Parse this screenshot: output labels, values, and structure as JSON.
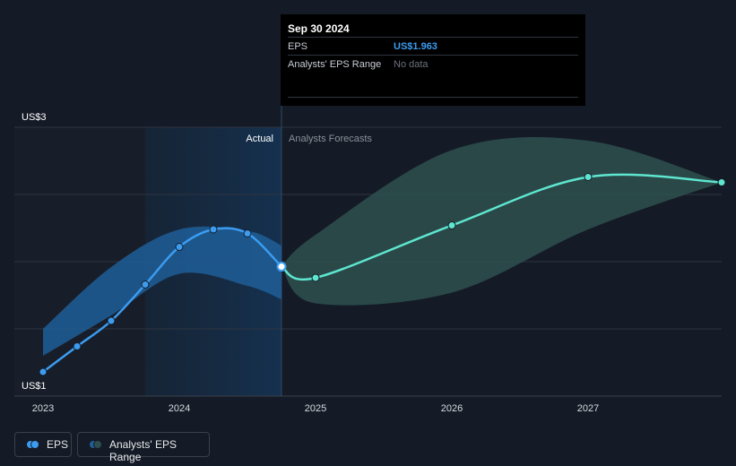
{
  "tooltip": {
    "date": "Sep 30 2024",
    "eps_label": "EPS",
    "eps_value": "US$1.963",
    "range_label": "Analysts' EPS Range",
    "range_value": "No data"
  },
  "labels": {
    "actual": "Actual",
    "forecast": "Analysts Forecasts"
  },
  "legend": {
    "eps": "EPS",
    "range": "Analysts' EPS Range"
  },
  "colors": {
    "eps_line": "#3b9cf0",
    "forecast_line": "#5ee6d0",
    "actual_band": "#1f5e98",
    "forecast_band": "#2c4e4c"
  },
  "chart_data": {
    "type": "line",
    "xlim": [
      2023.0,
      2027.98
    ],
    "ylim": [
      1,
      3
    ],
    "x_ticks": [
      "2023",
      "2024",
      "2025",
      "2026",
      "2027"
    ],
    "y_ticks": [
      "US$1",
      "US$3"
    ],
    "grid": true,
    "highlight_start": "2023.75",
    "divider_at": 2024.75,
    "series": [
      {
        "name": "EPS",
        "x": [
          2023.0,
          2023.25,
          2023.5,
          2023.75,
          2024.0,
          2024.25,
          2024.5,
          2024.75
        ],
        "values": [
          1.18,
          1.37,
          1.56,
          1.83,
          2.11,
          2.24,
          2.21,
          1.963
        ]
      },
      {
        "name": "Forecast",
        "x": [
          2024.75,
          2025.0,
          2026.0,
          2027.0,
          2027.98
        ],
        "values": [
          1.963,
          1.88,
          2.27,
          2.63,
          2.59
        ]
      }
    ],
    "actual_range": {
      "x": [
        2023.0,
        2023.5,
        2024.0,
        2024.5,
        2024.75
      ],
      "low": [
        1.3,
        1.6,
        1.91,
        1.82,
        1.72
      ],
      "high": [
        1.5,
        1.96,
        2.24,
        2.23,
        2.12
      ]
    },
    "forecast_range": {
      "x": [
        2024.75,
        2025.0,
        2026.0,
        2027.0,
        2027.98
      ],
      "low": [
        1.963,
        1.69,
        1.77,
        2.24,
        2.59
      ],
      "high": [
        1.963,
        2.2,
        2.83,
        2.9,
        2.59
      ]
    }
  }
}
